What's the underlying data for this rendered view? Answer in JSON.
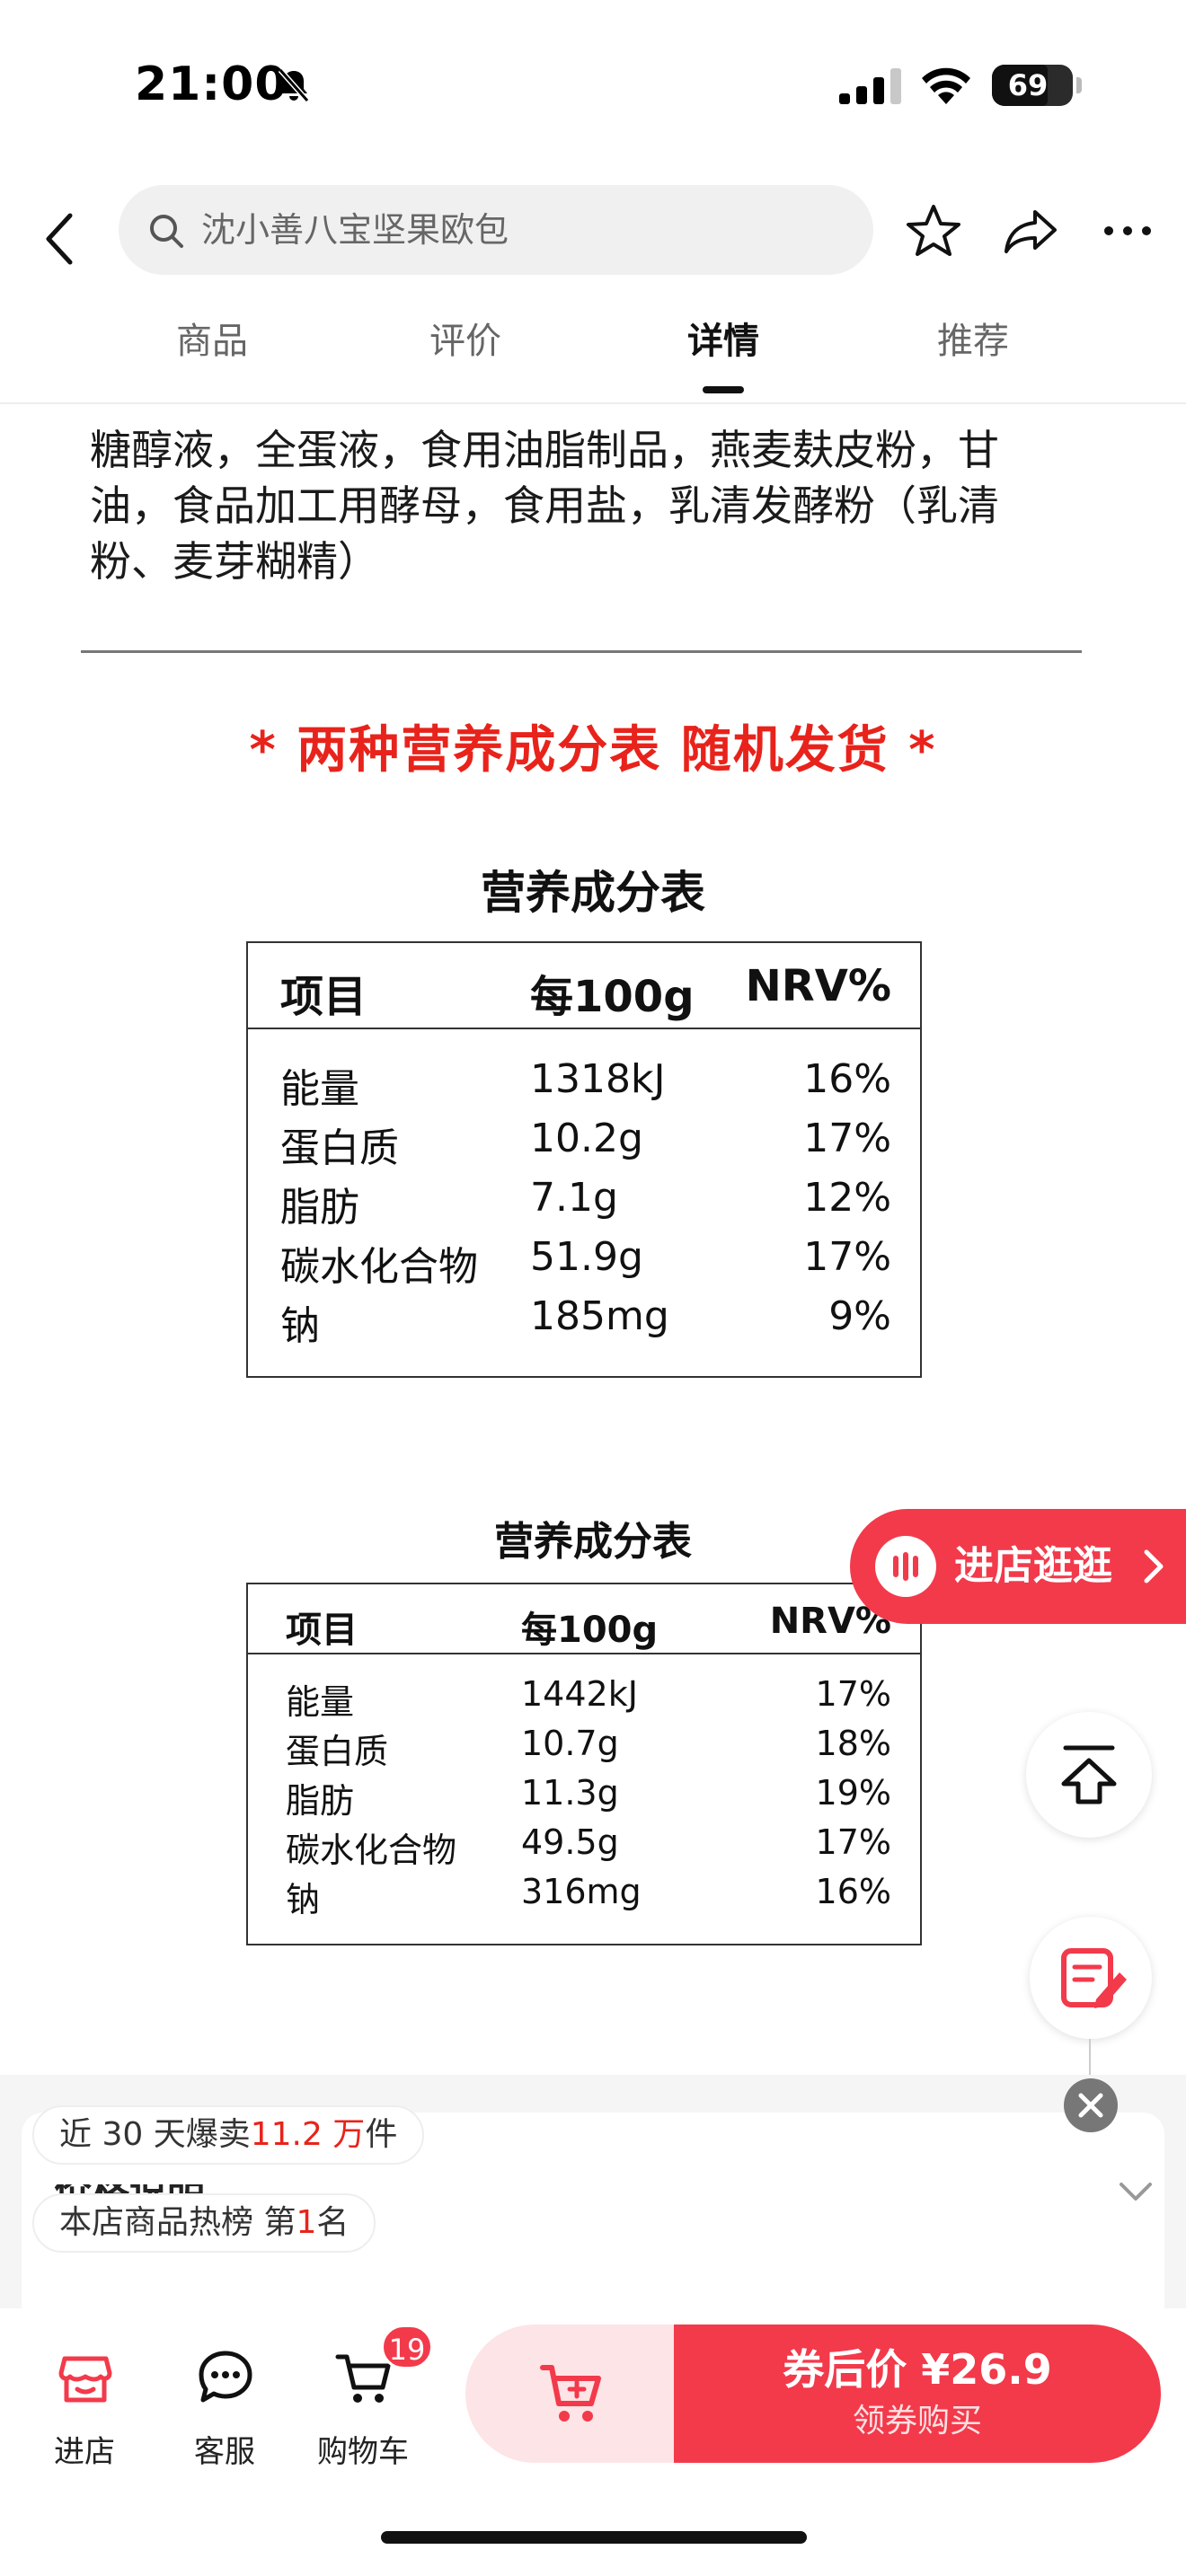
{
  "status_bar": {
    "time": "21:00",
    "battery": "69",
    "battery_level": 0.69
  },
  "search": {
    "text": "沈小善八宝坚果欧包"
  },
  "tabs": [
    {
      "label": "商品"
    },
    {
      "label": "评价"
    },
    {
      "label": "详情",
      "active": true
    },
    {
      "label": "推荐"
    }
  ],
  "content": {
    "ingredients_lines": [
      "糖醇液，全蛋液，食用油脂制品，燕麦麸皮粉，甘",
      "油，食品加工用酵母，食用盐，乳清发酵粉（乳清",
      "粉、麦芽糊精）"
    ],
    "notice": "* 两种营养成分表 随机发货 *",
    "nutrition_tables": [
      {
        "title": "营养成分表",
        "headers": [
          "项目",
          "每100g",
          "NRV%"
        ],
        "rows": [
          [
            "能量",
            "1318kJ",
            "16%"
          ],
          [
            "蛋白质",
            "10.2g",
            "17%"
          ],
          [
            "脂肪",
            "7.1g",
            "12%"
          ],
          [
            "碳水化合物",
            "51.9g",
            "17%"
          ],
          [
            "钠",
            "185mg",
            "9%"
          ]
        ]
      },
      {
        "title": "营养成分表",
        "headers": [
          "项目",
          "每100g",
          "NRV%"
        ],
        "rows": [
          [
            "能量",
            "1442kJ",
            "17%"
          ],
          [
            "蛋白质",
            "10.7g",
            "18%"
          ],
          [
            "脂肪",
            "11.3g",
            "19%"
          ],
          [
            "碳水化合物",
            "49.5g",
            "17%"
          ],
          [
            "钠",
            "316mg",
            "16%"
          ]
        ]
      }
    ]
  },
  "floating": {
    "store_label": "进店逛逛"
  },
  "price_panel": {
    "title": "价格说明",
    "sales_prefix": "近 30 天爆卖",
    "sales_value": "11.2 万",
    "sales_suffix": "件",
    "rank_prefix": "本店商品热榜 第",
    "rank_value": "1",
    "rank_suffix": "名"
  },
  "bottom_bar": {
    "items": [
      {
        "label": "进店",
        "icon": "store-icon"
      },
      {
        "label": "客服",
        "icon": "chat-icon"
      },
      {
        "label": "购物车",
        "icon": "cart-icon"
      }
    ],
    "cart_badge": "19",
    "buy_price": "券后价 ¥26.9",
    "buy_sub": "领券购买"
  },
  "colors": {
    "accent": "#f23a4b",
    "notice_red": "#e8231b"
  }
}
